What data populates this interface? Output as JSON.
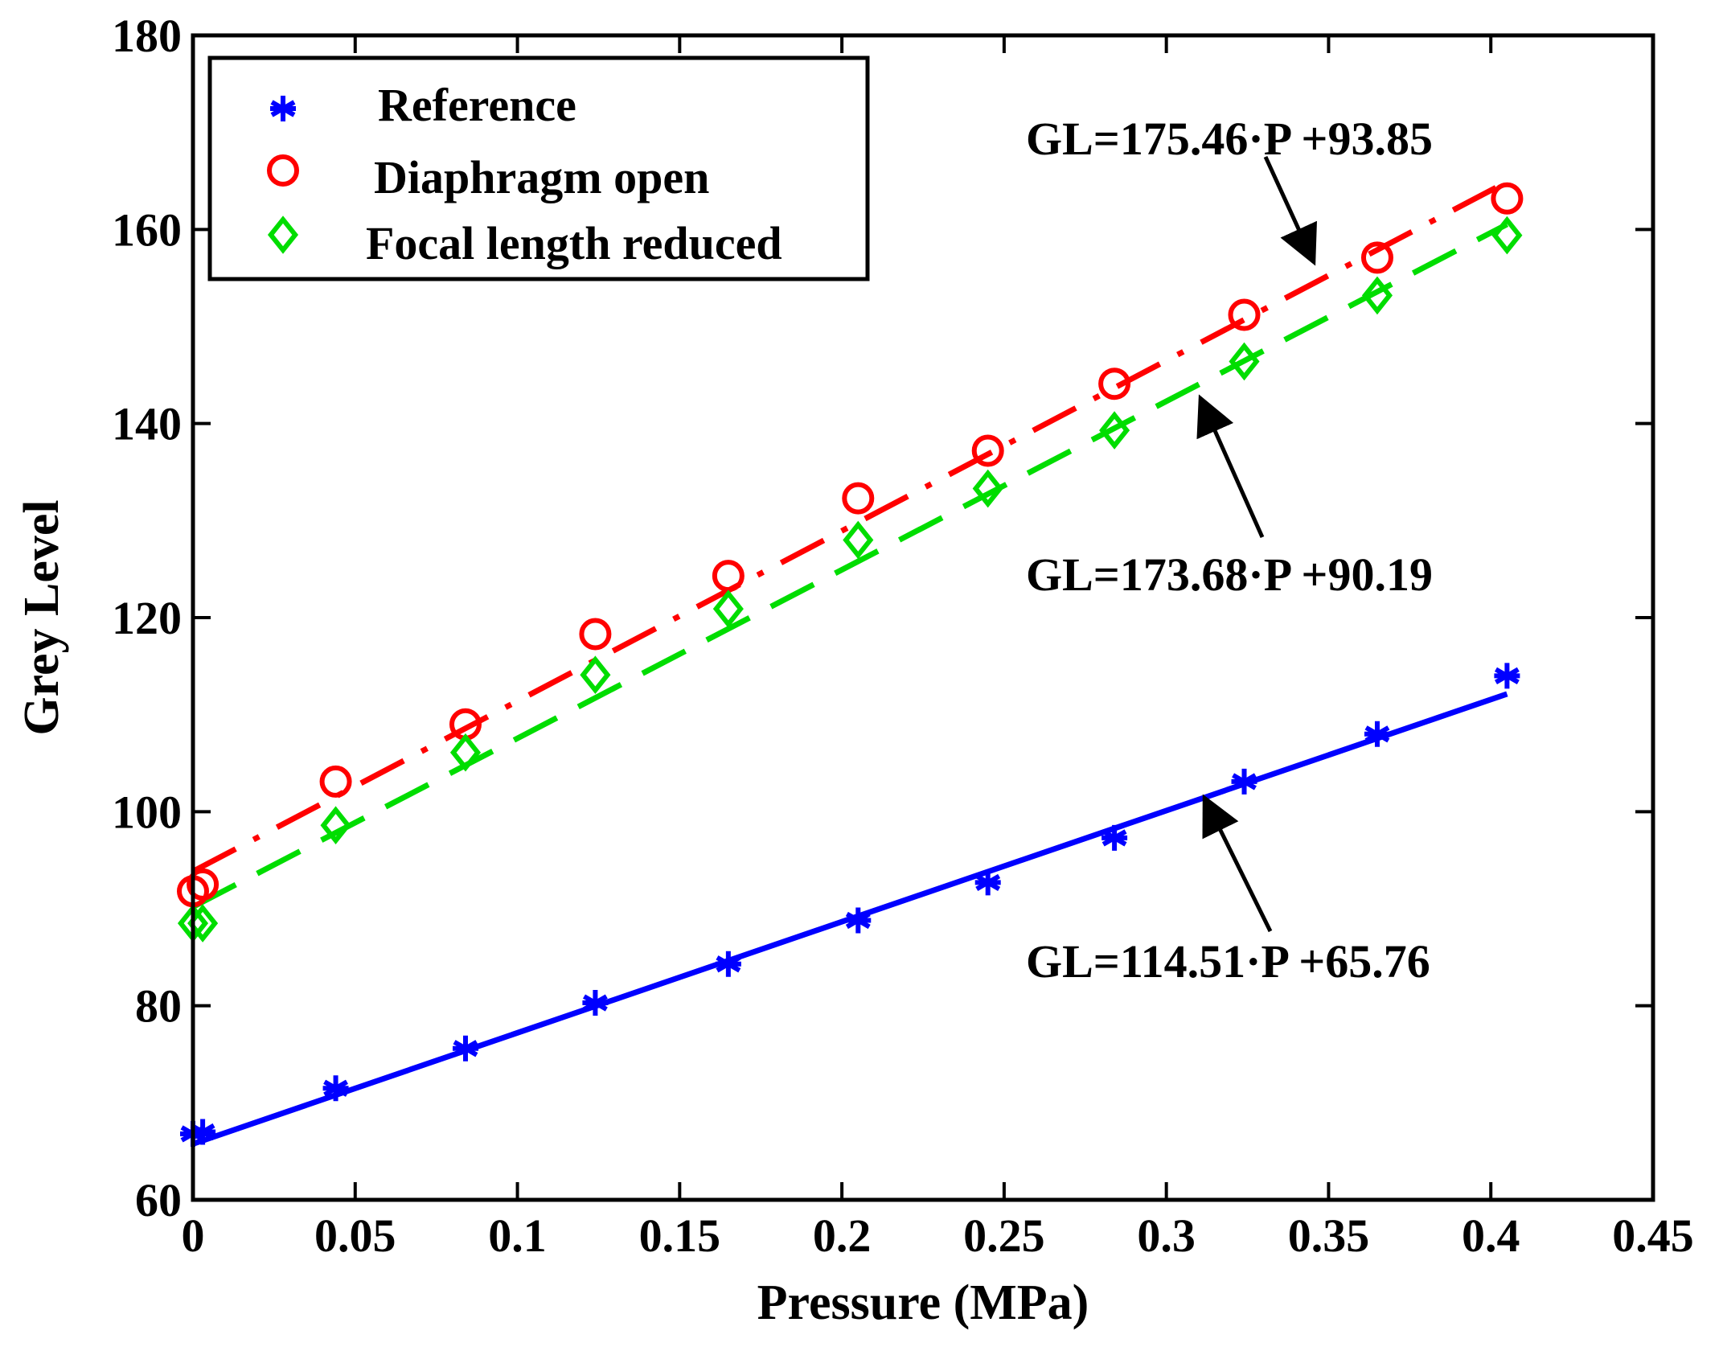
{
  "chart_data": {
    "type": "scatter",
    "xlabel": "Pressure (MPa)",
    "ylabel": "Grey Level",
    "xlim": [
      0,
      0.45
    ],
    "ylim": [
      60,
      180
    ],
    "x_ticks": [
      "0",
      "0.05",
      "0.1",
      "0.15",
      "0.2",
      "0.25",
      "0.3",
      "0.35",
      "0.4",
      "0.45"
    ],
    "y_ticks": [
      "60",
      "80",
      "100",
      "120",
      "140",
      "160",
      "180"
    ],
    "x_tick_values": [
      0,
      0.05,
      0.1,
      0.15,
      0.2,
      0.25,
      0.3,
      0.35,
      0.4,
      0.45
    ],
    "y_tick_values": [
      60,
      80,
      100,
      120,
      140,
      160,
      180
    ],
    "legend_position": "top-left",
    "series": [
      {
        "name": "Reference",
        "color": "#0000ff",
        "marker": "asterisk",
        "fit_style": "solid",
        "x": [
          0.0,
          0.003,
          0.044,
          0.084,
          0.124,
          0.165,
          0.205,
          0.245,
          0.284,
          0.324,
          0.365,
          0.405
        ],
        "y": [
          66.8,
          67.0,
          71.5,
          75.6,
          80.3,
          84.3,
          88.8,
          92.7,
          97.3,
          103.1,
          108.0,
          114.0
        ],
        "fit": {
          "slope": 114.51,
          "intercept": 65.76,
          "x_range": [
            0,
            0.405
          ]
        }
      },
      {
        "name": "Diaphragm open",
        "color": "#ff0000",
        "marker": "circle",
        "fit_style": "dashdot",
        "x": [
          0.0,
          0.003,
          0.044,
          0.084,
          0.124,
          0.165,
          0.205,
          0.245,
          0.284,
          0.324,
          0.365,
          0.405
        ],
        "y": [
          91.8,
          92.5,
          103.1,
          109.0,
          118.3,
          124.3,
          132.3,
          137.2,
          144.1,
          151.2,
          157.1,
          163.2
        ],
        "fit": {
          "slope": 175.46,
          "intercept": 93.85,
          "x_range": [
            0,
            0.405
          ]
        }
      },
      {
        "name": "Focal length reduced",
        "color": "#00dd00",
        "marker": "diamond",
        "fit_style": "dashed",
        "x": [
          0.0,
          0.003,
          0.044,
          0.084,
          0.124,
          0.165,
          0.205,
          0.245,
          0.284,
          0.324,
          0.365,
          0.405
        ],
        "y": [
          88.5,
          88.5,
          98.6,
          106.1,
          114.1,
          120.9,
          128.0,
          133.3,
          139.3,
          146.4,
          153.2,
          159.4
        ],
        "fit": {
          "slope": 173.68,
          "intercept": 90.19,
          "x_range": [
            0,
            0.405
          ]
        }
      }
    ],
    "annotations": [
      {
        "text": "GL=175.46·P +93.85",
        "arrow_to": [
          0.35,
          155.5
        ]
      },
      {
        "text": "GL=173.68·P +90.19",
        "arrow_to": [
          0.311,
          143.5
        ]
      },
      {
        "text": "GL=114.51·P +65.76",
        "arrow_to": [
          0.314,
          101.5
        ]
      }
    ]
  }
}
